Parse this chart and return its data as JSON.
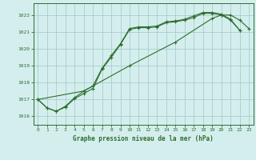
{
  "title": "Graphe pression niveau de la mer (hPa)",
  "background_color": "#d4eeee",
  "grid_color": "#aacccc",
  "line_color": "#2d6e2d",
  "xlim": [
    -0.5,
    23.5
  ],
  "ylim": [
    1015.5,
    1022.7
  ],
  "yticks": [
    1016,
    1017,
    1018,
    1019,
    1020,
    1021,
    1022
  ],
  "xticks": [
    0,
    1,
    2,
    3,
    4,
    5,
    6,
    7,
    8,
    9,
    10,
    11,
    12,
    13,
    14,
    15,
    16,
    17,
    18,
    19,
    20,
    21,
    22,
    23
  ],
  "series": [
    {
      "x": [
        0,
        1,
        2,
        3,
        4,
        5,
        6,
        7,
        8,
        9,
        10,
        11,
        12,
        13,
        14,
        15,
        16,
        17,
        18,
        19,
        20,
        21,
        22
      ],
      "y": [
        1017.0,
        1016.5,
        1016.3,
        1016.6,
        1017.1,
        1017.5,
        1017.8,
        1018.85,
        1019.6,
        1020.3,
        1021.2,
        1021.3,
        1021.3,
        1021.35,
        1021.6,
        1021.65,
        1021.75,
        1021.95,
        1022.15,
        1022.15,
        1022.05,
        1021.75,
        1021.1
      ]
    },
    {
      "x": [
        0,
        5,
        10,
        15,
        19,
        20,
        21,
        22,
        23
      ],
      "y": [
        1017.0,
        1017.5,
        1019.0,
        1020.4,
        1021.8,
        1022.0,
        1022.0,
        1021.7,
        1021.2
      ]
    },
    {
      "x": [
        0,
        1,
        2,
        3,
        4,
        5,
        6,
        7,
        8,
        9,
        10,
        11,
        12,
        13,
        14,
        15,
        16,
        17,
        18,
        19,
        20,
        21,
        22,
        23
      ],
      "y": [
        1017.0,
        1016.5,
        1016.3,
        1016.55,
        1017.05,
        1017.35,
        1017.65,
        1018.8,
        1019.5,
        1020.25,
        1021.15,
        1021.25,
        1021.25,
        1021.3,
        1021.55,
        1021.6,
        1021.7,
        1021.85,
        1022.1,
        1022.1,
        1022.0,
        1021.7,
        1021.1,
        null
      ]
    }
  ]
}
